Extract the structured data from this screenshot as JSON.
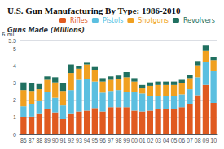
{
  "chart_data": {
    "type": "bar",
    "title": "U.S. Gun Manufacturing By Type: 1986-2010",
    "ylabel": "Guns Made (Millions)",
    "categories": [
      "86",
      "87",
      "88",
      "89",
      "90",
      "91",
      "92",
      "93",
      "94",
      "95",
      "96",
      "97",
      "98",
      "99",
      "00",
      "01",
      "02",
      "03",
      "04",
      "05",
      "06",
      "07",
      "08",
      "09",
      "10"
    ],
    "series": [
      {
        "name": "Rifles",
        "color": "#e05a20",
        "values": [
          1.0,
          1.05,
          1.2,
          1.5,
          1.3,
          0.9,
          1.2,
          1.35,
          1.4,
          1.55,
          1.35,
          1.6,
          1.6,
          1.6,
          1.4,
          1.35,
          1.4,
          1.5,
          1.5,
          1.5,
          1.6,
          1.8,
          2.3,
          2.9,
          1.85
        ]
      },
      {
        "name": "Pistols",
        "color": "#5bbfe0",
        "values": [
          0.65,
          0.75,
          0.75,
          1.0,
          0.85,
          0.8,
          1.4,
          1.85,
          1.85,
          1.55,
          1.1,
          0.95,
          1.0,
          0.9,
          1.1,
          1.05,
          0.85,
          0.75,
          0.75,
          0.75,
          0.75,
          0.85,
          1.05,
          1.35,
          1.85
        ]
      },
      {
        "name": "Shotguns",
        "color": "#f0a020",
        "values": [
          0.95,
          0.75,
          0.7,
          0.7,
          0.9,
          0.85,
          1.0,
          0.65,
          0.85,
          0.65,
          0.65,
          0.65,
          0.65,
          0.85,
          0.6,
          0.3,
          0.6,
          0.65,
          0.65,
          0.65,
          0.65,
          0.65,
          0.7,
          0.65,
          0.65
        ]
      },
      {
        "name": "Revolvers",
        "color": "#207060",
        "values": [
          0.45,
          0.45,
          0.3,
          0.2,
          0.3,
          0.45,
          0.5,
          0.15,
          0.1,
          0.2,
          0.2,
          0.2,
          0.2,
          0.3,
          0.2,
          0.2,
          0.2,
          0.2,
          0.2,
          0.2,
          0.2,
          0.2,
          0.25,
          0.3,
          0.2
        ]
      }
    ],
    "stacked": true,
    "ylim": [
      0,
      5.5
    ],
    "yticks": [
      0,
      1,
      2,
      3,
      4,
      5
    ],
    "grid": true,
    "legend": "upper right",
    "annotations": [
      {
        "text": "6 ml.",
        "y": 5.55
      }
    ]
  }
}
